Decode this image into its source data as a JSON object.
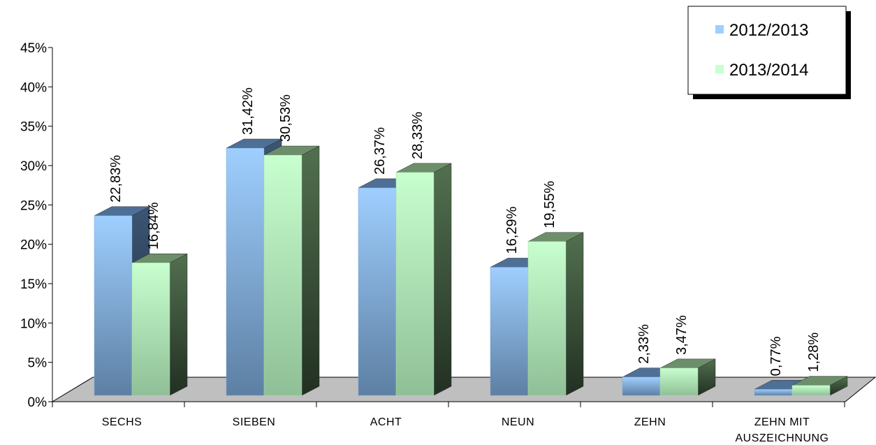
{
  "chart_data": {
    "type": "bar",
    "categories": [
      "SECHS",
      "SIEBEN",
      "ACHT",
      "NEUN",
      "ZEHN",
      "ZEHN MIT AUSZEICHNUNG"
    ],
    "category_lines": [
      [
        "SECHS"
      ],
      [
        "SIEBEN"
      ],
      [
        "ACHT"
      ],
      [
        "NEUN"
      ],
      [
        "ZEHN"
      ],
      [
        "ZEHN MIT",
        "AUSZEICHNUNG"
      ]
    ],
    "series": [
      {
        "name": "2012/2013",
        "values": [
          22.83,
          31.42,
          26.37,
          16.29,
          2.33,
          0.77
        ],
        "labels": [
          "22,83%",
          "31,42%",
          "26,37%",
          "16,29%",
          "2,33%",
          "0,77%"
        ]
      },
      {
        "name": "2013/2014",
        "values": [
          16.84,
          30.53,
          28.33,
          19.55,
          3.47,
          1.28
        ],
        "labels": [
          "16,84%",
          "30,53%",
          "28,33%",
          "19,55%",
          "3,47%",
          "1,28%"
        ]
      }
    ],
    "yticks": [
      "0%",
      "5%",
      "10%",
      "15%",
      "20%",
      "25%",
      "30%",
      "35%",
      "40%",
      "45%"
    ],
    "ylim": [
      0,
      45
    ],
    "title": "",
    "xlabel": "",
    "ylabel": "",
    "grid": false,
    "legend_position": "top-right",
    "style": "3d-column"
  },
  "colors": {
    "series1_front_top": "#9fcfff",
    "series1_front_bottom": "#5d7fa3",
    "series1_side": "#3b5573",
    "series1_top": "#4e6f96",
    "series2_front_top": "#c8ffcf",
    "series2_front_bottom": "#8fbf96",
    "series2_side": "#52704f",
    "series2_top": "#6c8f6a",
    "floor": "#bfbfbf"
  }
}
